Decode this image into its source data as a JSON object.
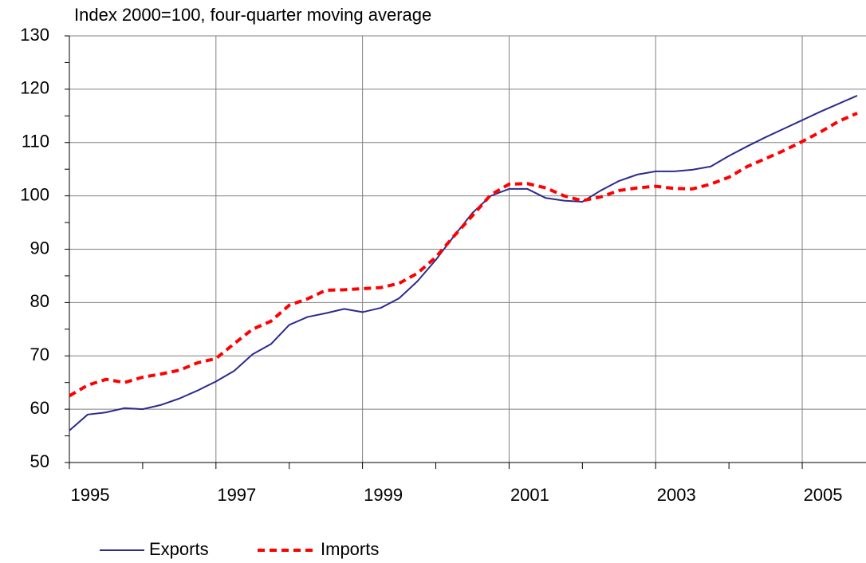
{
  "chart_data": {
    "type": "line",
    "title": "Index 2000=100, four-quarter moving average",
    "x": [
      1995.0,
      1995.25,
      1995.5,
      1995.75,
      1996.0,
      1996.25,
      1996.5,
      1996.75,
      1997.0,
      1997.25,
      1997.5,
      1997.75,
      1998.0,
      1998.25,
      1998.5,
      1998.75,
      1999.0,
      1999.25,
      1999.5,
      1999.75,
      2000.0,
      2000.25,
      2000.5,
      2000.75,
      2001.0,
      2001.25,
      2001.5,
      2001.75,
      2002.0,
      2002.25,
      2002.5,
      2002.75,
      2003.0,
      2003.25,
      2003.5,
      2003.75,
      2004.0,
      2004.25,
      2004.5,
      2004.75,
      2005.0,
      2005.25,
      2005.5,
      2005.75
    ],
    "series": [
      {
        "name": "Exports",
        "color": "#2b2b8c",
        "dash": false,
        "values": [
          56,
          59,
          59.4,
          60.2,
          60,
          60.8,
          62,
          63.5,
          65.2,
          67.2,
          70.3,
          72.2,
          75.8,
          77.3,
          78,
          78.8,
          78.2,
          79,
          80.8,
          84,
          88,
          92.5,
          96.8,
          100,
          101.3,
          101.3,
          99.6,
          99.1,
          98.9,
          101,
          102.8,
          104,
          104.6,
          104.6,
          104.9,
          105.5,
          107.5,
          109.3,
          111,
          112.6,
          114.2,
          115.8,
          117.3,
          118.8
        ]
      },
      {
        "name": "Imports",
        "color": "#ff0000",
        "dash": true,
        "values": [
          62.5,
          64.5,
          65.6,
          65,
          66,
          66.6,
          67.3,
          68.7,
          69.5,
          72.3,
          75,
          76.5,
          79.5,
          80.7,
          82.3,
          82.4,
          82.6,
          82.8,
          83.6,
          85.5,
          88.5,
          92.5,
          96.3,
          100.2,
          102.2,
          102.3,
          101.5,
          100,
          99.1,
          99.8,
          101,
          101.5,
          101.8,
          101.4,
          101.3,
          102.2,
          103.5,
          105.5,
          107,
          108.5,
          110.2,
          112,
          114,
          115.5
        ]
      }
    ],
    "xlim": [
      1995,
      2005.87
    ],
    "xticks": [
      1995,
      1997,
      1999,
      2001,
      2003,
      2005
    ],
    "ylim": [
      50,
      130
    ],
    "yticks": [
      50,
      60,
      70,
      80,
      90,
      100,
      110,
      120,
      130
    ],
    "grid": true
  }
}
